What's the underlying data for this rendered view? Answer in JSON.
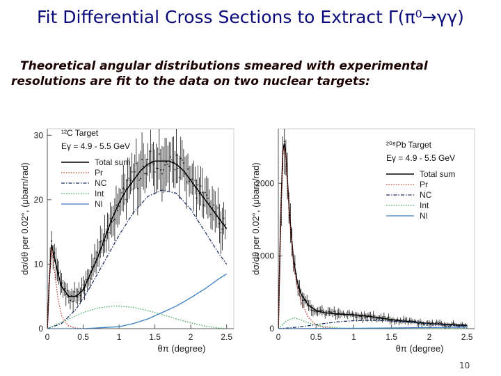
{
  "slide": {
    "title": "Fit Differential Cross Sections to Extract Γ(π⁰→γγ)",
    "subtitle_line1": "Theoretical angular distributions smeared with experimental",
    "subtitle_line2": "resolutions are fit to the data on two nuclear targets:",
    "page_number": "10"
  },
  "colors": {
    "title": "#0a0a7a",
    "total_sum": "#000000",
    "pr": "#c0392b",
    "nc": "#1f2f5f",
    "int": "#3aa55a",
    "nl": "#3a7ec0",
    "data": "#111111"
  },
  "chart_data": [
    {
      "type": "line",
      "target_label": "¹²C Target",
      "energy_label": "Eγ = 4.9 - 5.5 GeV",
      "xlabel": "θπ (degree)",
      "ylabel": "dσ/dθ per 0.02°, (μbarn/rad)",
      "xlim": [
        0,
        2.6
      ],
      "ylim": [
        0,
        31
      ],
      "x_ticks": [
        0,
        0.5,
        1,
        1.5,
        2,
        2.5
      ],
      "x_tick_labels": [
        "0",
        "0.5",
        "1",
        "1.5",
        "2",
        "2.5"
      ],
      "y_ticks": [
        0,
        10,
        20,
        30
      ],
      "y_tick_labels": [
        "0",
        "10",
        "20",
        "30"
      ],
      "legend_position": "top-left",
      "series": [
        {
          "name": "Total sum",
          "style": "solid",
          "color": "#000000",
          "x": [
            0,
            0.03,
            0.06,
            0.1,
            0.15,
            0.2,
            0.3,
            0.4,
            0.5,
            0.6,
            0.7,
            0.8,
            0.9,
            1.0,
            1.1,
            1.2,
            1.3,
            1.4,
            1.5,
            1.6,
            1.7,
            1.8,
            1.9,
            2.0,
            2.1,
            2.2,
            2.3,
            2.4,
            2.5
          ],
          "y": [
            0,
            8,
            13,
            11,
            8.5,
            6.5,
            5,
            5,
            6,
            8.5,
            11,
            14,
            17,
            19.5,
            21.5,
            23,
            24.5,
            25.5,
            26,
            26,
            26,
            25.5,
            24.5,
            23,
            21.5,
            20,
            18.5,
            17,
            15.5
          ]
        },
        {
          "name": "Pr",
          "style": "dotted",
          "color": "#c0392b",
          "x": [
            0,
            0.03,
            0.06,
            0.1,
            0.15,
            0.2,
            0.25,
            0.3,
            0.4,
            0.5,
            0.6
          ],
          "y": [
            0,
            8,
            12.5,
            9,
            4.5,
            2,
            1,
            0.4,
            0.1,
            0,
            0
          ]
        },
        {
          "name": "NC",
          "style": "dashdot",
          "color": "#1f2f5f",
          "x": [
            0,
            0.2,
            0.4,
            0.6,
            0.8,
            1.0,
            1.2,
            1.4,
            1.6,
            1.8,
            2.0,
            2.2,
            2.4,
            2.5
          ],
          "y": [
            0,
            0.8,
            3,
            6.5,
            10.5,
            14.5,
            18,
            20.5,
            21.5,
            21,
            18.5,
            15,
            11.5,
            10
          ]
        },
        {
          "name": "Int",
          "style": "dotted",
          "color": "#3aa55a",
          "x": [
            0,
            0.1,
            0.3,
            0.5,
            0.7,
            0.9,
            1.0,
            1.2,
            1.4,
            1.6,
            1.8,
            2.0,
            2.2,
            2.4,
            2.5
          ],
          "y": [
            0,
            0.5,
            1.5,
            2.5,
            3.2,
            3.5,
            3.5,
            3.3,
            2.8,
            2.2,
            1.5,
            0.9,
            0.4,
            0.1,
            0
          ]
        },
        {
          "name": "Nl",
          "style": "solid",
          "color": "#3a7ec0",
          "x": [
            0,
            0.5,
            1.0,
            1.2,
            1.4,
            1.6,
            1.8,
            2.0,
            2.2,
            2.4,
            2.5
          ],
          "y": [
            0,
            0,
            0.3,
            0.8,
            1.5,
            2.5,
            3.5,
            4.8,
            6.2,
            7.8,
            8.5
          ]
        }
      ]
    },
    {
      "type": "line",
      "target_label": "²⁰⁸Pb Target",
      "energy_label": "Eγ = 4.9 - 5.5 GeV",
      "xlabel": "θπ (degree)",
      "ylabel": "dσ/dθ per 0.02°, (μbarn/rad)",
      "xlim": [
        0,
        2.6
      ],
      "ylim": [
        0,
        2750
      ],
      "x_ticks": [
        0,
        0.5,
        1,
        1.5,
        2,
        2.5
      ],
      "x_tick_labels": [
        "0",
        "0.5",
        "1",
        "1.5",
        "2",
        "2.5"
      ],
      "y_ticks": [
        0,
        1000,
        2000
      ],
      "y_tick_labels": [
        "0",
        "1000",
        "2000"
      ],
      "legend_position": "top-right",
      "series": [
        {
          "name": "Total sum",
          "style": "solid",
          "color": "#000000",
          "x": [
            0,
            0.03,
            0.06,
            0.08,
            0.1,
            0.12,
            0.15,
            0.2,
            0.25,
            0.3,
            0.4,
            0.5,
            0.6,
            0.8,
            1.0,
            1.2,
            1.4,
            1.6,
            1.8,
            2.0,
            2.2,
            2.4,
            2.5
          ],
          "y": [
            0,
            1500,
            2450,
            2550,
            2400,
            2050,
            1550,
            950,
            650,
            480,
            320,
            250,
            220,
            200,
            190,
            170,
            140,
            110,
            90,
            70,
            60,
            50,
            45
          ]
        },
        {
          "name": "Pr",
          "style": "dotted",
          "color": "#c0392b",
          "x": [
            0,
            0.03,
            0.06,
            0.08,
            0.1,
            0.12,
            0.15,
            0.2,
            0.25,
            0.3,
            0.4,
            0.5,
            0.6,
            0.8
          ],
          "y": [
            0,
            1450,
            2400,
            2500,
            2350,
            2000,
            1500,
            900,
            580,
            380,
            150,
            50,
            15,
            0
          ]
        },
        {
          "name": "NC",
          "style": "dashdot",
          "color": "#1f2f5f",
          "x": [
            0,
            0.2,
            0.4,
            0.6,
            0.8,
            1.0,
            1.2,
            1.4,
            1.6,
            1.8,
            2.0,
            2.2,
            2.4,
            2.5
          ],
          "y": [
            0,
            15,
            40,
            70,
            95,
            110,
            115,
            110,
            100,
            85,
            70,
            55,
            40,
            35
          ]
        },
        {
          "name": "Int",
          "style": "dotted",
          "color": "#3aa55a",
          "x": [
            0,
            0.1,
            0.2,
            0.3,
            0.4,
            0.5,
            0.6,
            0.8,
            1.0,
            1.5,
            2.0,
            2.5
          ],
          "y": [
            0,
            100,
            150,
            120,
            80,
            50,
            30,
            10,
            5,
            0,
            0,
            0
          ]
        },
        {
          "name": "Nl",
          "style": "solid",
          "color": "#3a7ec0",
          "x": [
            0,
            0.5,
            1.0,
            1.5,
            2.0,
            2.5
          ],
          "y": [
            0,
            2,
            5,
            10,
            15,
            20
          ]
        }
      ]
    }
  ]
}
